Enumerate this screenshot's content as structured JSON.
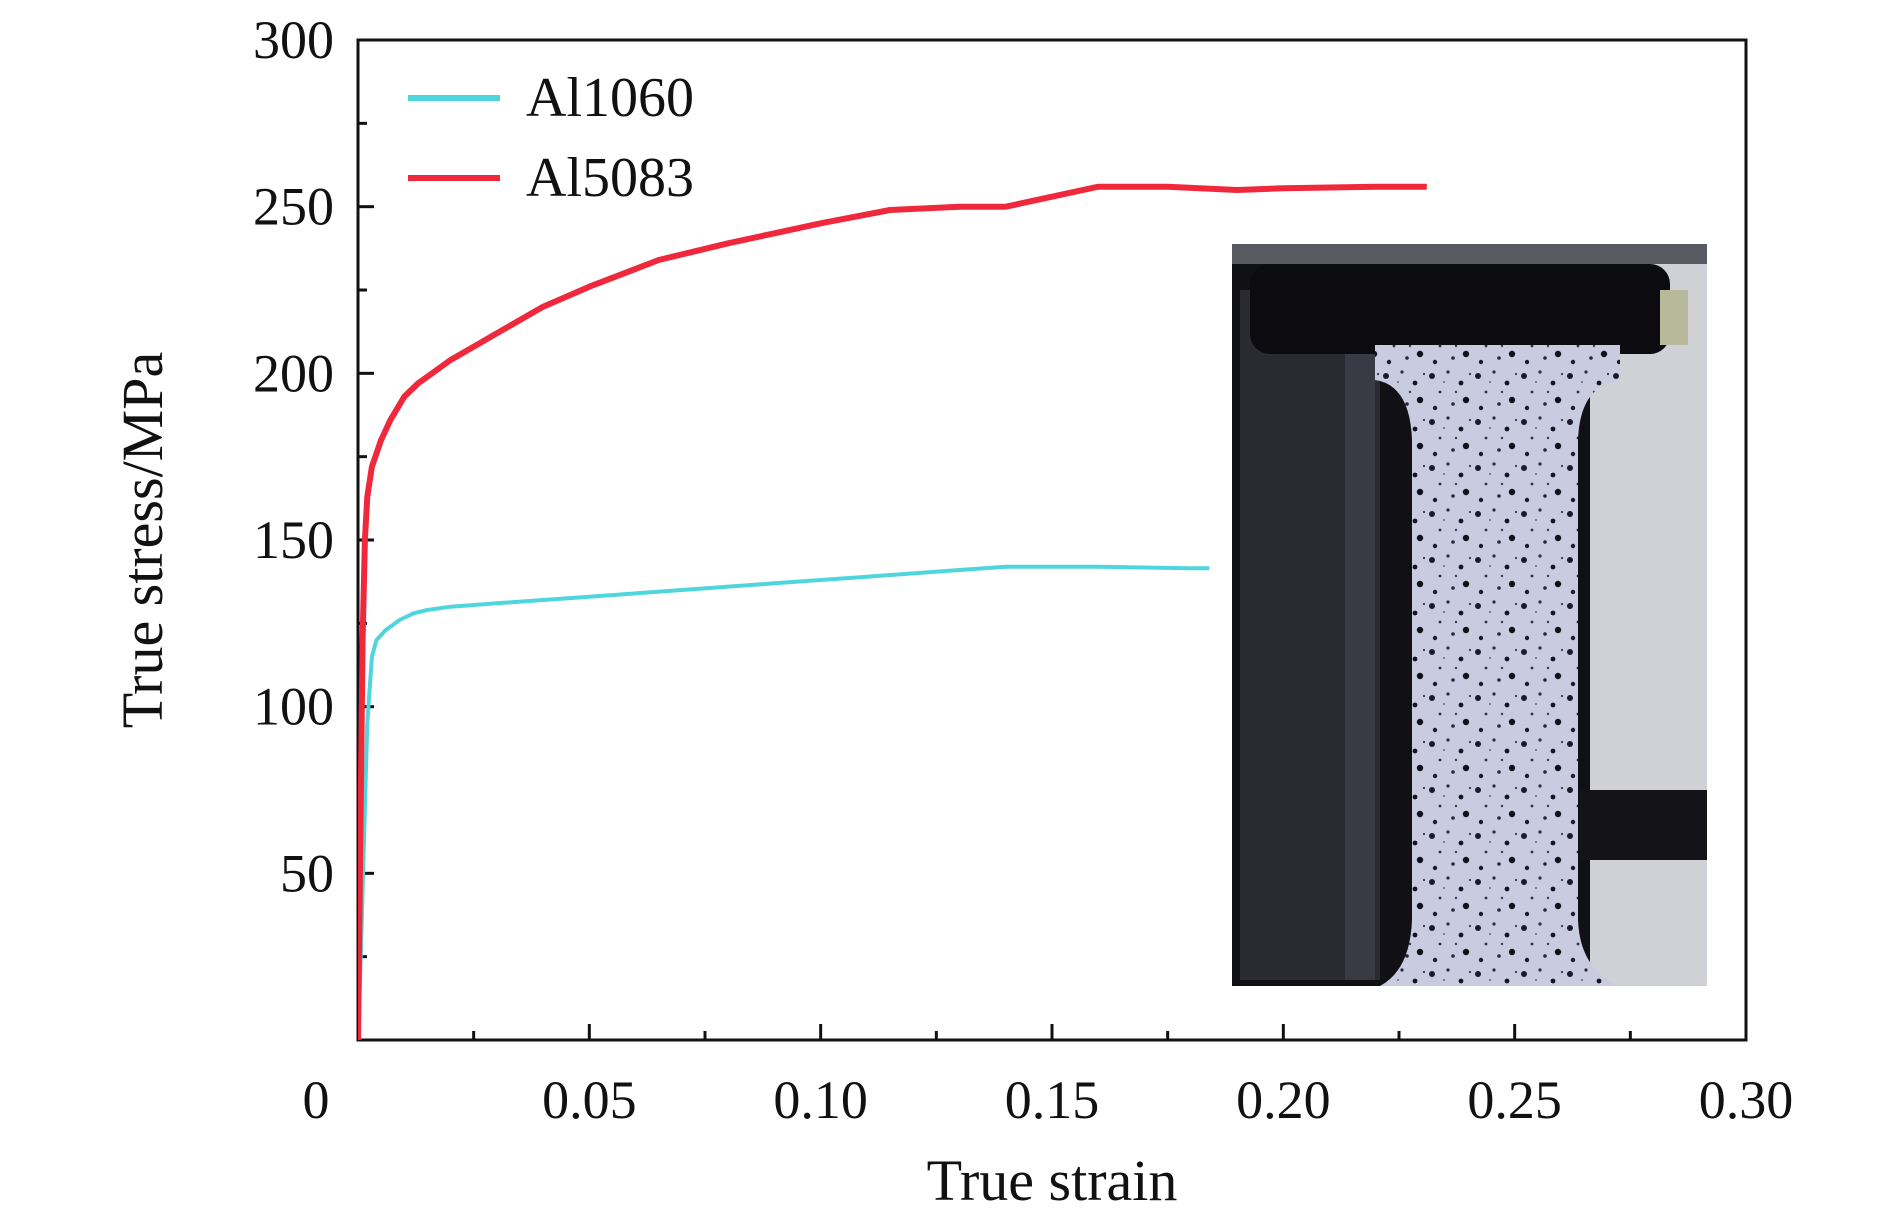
{
  "chart_data": {
    "type": "line",
    "xlabel": "True strain",
    "ylabel": "True stress/MPa",
    "xlim": [
      0,
      0.3
    ],
    "ylim": [
      0,
      300
    ],
    "x_ticks": [
      "0",
      "0.05",
      "0.10",
      "0.15",
      "0.20",
      "0.25",
      "0.30"
    ],
    "x_tick_values": [
      0,
      0.05,
      0.1,
      0.15,
      0.2,
      0.25,
      0.3
    ],
    "y_ticks": [
      "50",
      "100",
      "150",
      "200",
      "250",
      "300"
    ],
    "y_tick_values": [
      50,
      100,
      150,
      200,
      250,
      300
    ],
    "grid": false,
    "legend_position": "top-left",
    "series": [
      {
        "name": "Al1060",
        "color": "#4fd6dc",
        "x": [
          0,
          0.0005,
          0.001,
          0.0015,
          0.002,
          0.003,
          0.004,
          0.006,
          0.009,
          0.012,
          0.015,
          0.02,
          0.03,
          0.05,
          0.07,
          0.09,
          0.11,
          0.13,
          0.14,
          0.16,
          0.18,
          0.184
        ],
        "y": [
          0,
          20,
          45,
          70,
          95,
          115,
          120,
          123,
          126,
          128,
          129,
          130,
          131,
          133,
          135,
          137,
          139,
          141,
          142,
          142,
          141.5,
          141.5
        ]
      },
      {
        "name": "Al5083",
        "color": "#f0283c",
        "x": [
          0,
          0.0005,
          0.001,
          0.0015,
          0.002,
          0.003,
          0.005,
          0.007,
          0.01,
          0.013,
          0.015,
          0.02,
          0.025,
          0.03,
          0.04,
          0.05,
          0.065,
          0.08,
          0.09,
          0.1,
          0.115,
          0.13,
          0.14,
          0.15,
          0.16,
          0.175,
          0.19,
          0.2,
          0.22,
          0.231
        ],
        "y": [
          0,
          60,
          120,
          150,
          163,
          172,
          180,
          186,
          193,
          197,
          199,
          204,
          208,
          212,
          220,
          226,
          234,
          239,
          242,
          245,
          249,
          250,
          250,
          253,
          256,
          256,
          255,
          255.5,
          256,
          256
        ]
      }
    ]
  },
  "inset": {
    "description_icon": "tensile-specimen-photo"
  }
}
